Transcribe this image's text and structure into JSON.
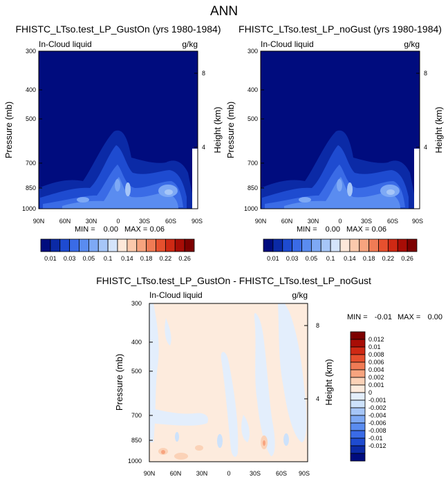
{
  "suptitle": "ANN",
  "colors": {
    "abs_scale": [
      "#000c7e",
      "#0b2aa6",
      "#1e4bd0",
      "#3a6be6",
      "#5a8cf0",
      "#7ea9f5",
      "#a6c6f8",
      "#d4e4fb",
      "#fde8d9",
      "#fbc9ac",
      "#f7a47f",
      "#f07b55",
      "#e6502e",
      "#cf2914",
      "#a80d06",
      "#7d0000"
    ],
    "diff_scale": [
      "#000c7e",
      "#0b2aa6",
      "#1e4bd0",
      "#3a6be6",
      "#5a8cf0",
      "#7ea9f5",
      "#a6c6f8",
      "#cde2fb",
      "#e3eefc",
      "#fdebdd",
      "#fbd2b7",
      "#f7a47f",
      "#f07b55",
      "#e6502e",
      "#cf2914",
      "#a80d06",
      "#7d0000"
    ]
  },
  "chart_data": [
    {
      "type": "heatmap",
      "title": "FHISTC_LTso.test_LP_GustOn (yrs 1980-1984)",
      "left_label": "In-Cloud liquid",
      "right_label": "g/kg",
      "ylabel": "Pressure (mb)",
      "ylabel_right": "Height (km)",
      "x_ticks": [
        "90N",
        "60N",
        "30N",
        "0",
        "30S",
        "60S",
        "90S"
      ],
      "y_ticks": [
        "300",
        "400",
        "500",
        "700",
        "850",
        "1000"
      ],
      "y_ticks_right": [
        "8",
        "4"
      ],
      "ylim": [
        1000,
        300
      ],
      "log_y": true,
      "stats": {
        "min_label": "MIN =",
        "min": "0.00",
        "max_label": "MAX =",
        "max": "0.06"
      },
      "colorbar": [
        "0.01",
        "0.03",
        "0.05",
        "0.1",
        "0.14",
        "0.18",
        "0.22",
        "0.26"
      ]
    },
    {
      "type": "heatmap",
      "title": "FHISTC_LTso.test_LP_noGust (yrs 1980-1984)",
      "left_label": "In-Cloud liquid",
      "right_label": "g/kg",
      "ylabel": "Pressure (mb)",
      "ylabel_right": "Height (km)",
      "x_ticks": [
        "90N",
        "60N",
        "30N",
        "0",
        "30S",
        "60S",
        "90S"
      ],
      "y_ticks": [
        "300",
        "400",
        "500",
        "700",
        "850",
        "1000"
      ],
      "y_ticks_right": [
        "8",
        "4"
      ],
      "ylim": [
        1000,
        300
      ],
      "log_y": true,
      "stats": {
        "min_label": "MIN =",
        "min": "0.00",
        "max_label": "MAX =",
        "max": "0.06"
      },
      "colorbar": [
        "0.01",
        "0.03",
        "0.05",
        "0.1",
        "0.14",
        "0.18",
        "0.22",
        "0.26"
      ]
    },
    {
      "type": "heatmap",
      "title": "FHISTC_LTso.test_LP_GustOn - FHISTC_LTso.test_LP_noGust",
      "left_label": "In-Cloud liquid",
      "right_label": "g/kg",
      "ylabel": "Pressure (mb)",
      "ylabel_right": "Height (km)",
      "x_ticks": [
        "90N",
        "60N",
        "30N",
        "0",
        "30S",
        "60S",
        "90S"
      ],
      "y_ticks": [
        "300",
        "400",
        "500",
        "700",
        "850",
        "1000"
      ],
      "y_ticks_right": [
        "8",
        "4"
      ],
      "ylim": [
        1000,
        300
      ],
      "log_y": true,
      "stats": {
        "min_label": "MIN =",
        "min": "-0.01",
        "max_label": "MAX =",
        "max": "0.00"
      },
      "colorbar": [
        "0.012",
        "0.01",
        "0.008",
        "0.006",
        "0.004",
        "0.002",
        "0.001",
        "0",
        "-0.001",
        "-0.002",
        "-0.004",
        "-0.006",
        "-0.008",
        "-0.01",
        "-0.012"
      ]
    }
  ]
}
